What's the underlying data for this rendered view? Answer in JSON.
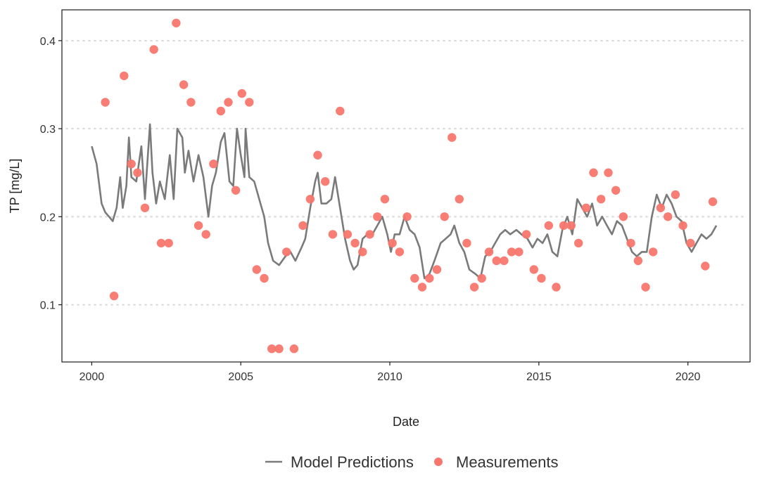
{
  "chart_data": {
    "type": "line",
    "xlabel": "Date",
    "ylabel": "TP [mg/L]",
    "x_ticks": [
      "2000",
      "2005",
      "2010",
      "2015",
      "2020"
    ],
    "y_ticks": [
      "0.1",
      "0.2",
      "0.3",
      "0.4"
    ],
    "xlim": [
      "1999-01-01",
      "2022-02-01"
    ],
    "ylim": [
      0.035,
      0.435
    ],
    "grid": "horizontal dotted",
    "legend_position": "bottom",
    "series": [
      {
        "name": "Model Predictions",
        "type": "line",
        "color": "#7a7a7a",
        "points": [
          [
            "2000-01-01",
            0.28
          ],
          [
            "2000-03-01",
            0.26
          ],
          [
            "2000-05-01",
            0.215
          ],
          [
            "2000-06-15",
            0.205
          ],
          [
            "2000-08-01",
            0.2
          ],
          [
            "2000-09-15",
            0.195
          ],
          [
            "2000-11-01",
            0.21
          ],
          [
            "2000-12-15",
            0.245
          ],
          [
            "2001-01-15",
            0.21
          ],
          [
            "2001-03-01",
            0.235
          ],
          [
            "2001-04-01",
            0.29
          ],
          [
            "2001-05-01",
            0.245
          ],
          [
            "2001-07-01",
            0.24
          ],
          [
            "2001-09-01",
            0.28
          ],
          [
            "2001-10-15",
            0.22
          ],
          [
            "2001-12-15",
            0.305
          ],
          [
            "2002-01-15",
            0.25
          ],
          [
            "2002-03-01",
            0.215
          ],
          [
            "2002-04-15",
            0.24
          ],
          [
            "2002-06-15",
            0.22
          ],
          [
            "2002-08-15",
            0.27
          ],
          [
            "2002-10-01",
            0.22
          ],
          [
            "2002-11-15",
            0.3
          ],
          [
            "2003-01-15",
            0.29
          ],
          [
            "2003-02-15",
            0.25
          ],
          [
            "2003-04-01",
            0.275
          ],
          [
            "2003-06-01",
            0.24
          ],
          [
            "2003-08-01",
            0.27
          ],
          [
            "2003-10-01",
            0.245
          ],
          [
            "2003-12-01",
            0.2
          ],
          [
            "2004-01-15",
            0.235
          ],
          [
            "2004-03-01",
            0.25
          ],
          [
            "2004-05-01",
            0.285
          ],
          [
            "2004-06-15",
            0.295
          ],
          [
            "2004-08-15",
            0.24
          ],
          [
            "2004-10-01",
            0.235
          ],
          [
            "2004-11-15",
            0.3
          ],
          [
            "2005-01-01",
            0.27
          ],
          [
            "2005-02-15",
            0.245
          ],
          [
            "2005-03-01",
            0.3
          ],
          [
            "2005-04-15",
            0.245
          ],
          [
            "2005-06-15",
            0.24
          ],
          [
            "2005-08-15",
            0.22
          ],
          [
            "2005-10-15",
            0.2
          ],
          [
            "2005-12-01",
            0.17
          ],
          [
            "2006-02-01",
            0.15
          ],
          [
            "2006-04-15",
            0.145
          ],
          [
            "2006-07-01",
            0.155
          ],
          [
            "2006-09-01",
            0.16
          ],
          [
            "2006-11-01",
            0.15
          ],
          [
            "2007-01-15",
            0.165
          ],
          [
            "2007-03-01",
            0.175
          ],
          [
            "2007-05-01",
            0.21
          ],
          [
            "2007-07-01",
            0.24
          ],
          [
            "2007-08-01",
            0.25
          ],
          [
            "2007-09-15",
            0.215
          ],
          [
            "2007-11-15",
            0.215
          ],
          [
            "2008-01-15",
            0.22
          ],
          [
            "2008-03-01",
            0.245
          ],
          [
            "2008-05-01",
            0.21
          ],
          [
            "2008-07-01",
            0.175
          ],
          [
            "2008-09-01",
            0.15
          ],
          [
            "2008-10-15",
            0.14
          ],
          [
            "2008-12-01",
            0.145
          ],
          [
            "2009-02-01",
            0.175
          ],
          [
            "2009-04-01",
            0.18
          ],
          [
            "2009-06-01",
            0.18
          ],
          [
            "2009-08-01",
            0.19
          ],
          [
            "2009-10-01",
            0.2
          ],
          [
            "2009-12-01",
            0.18
          ],
          [
            "2010-01-15",
            0.16
          ],
          [
            "2010-03-01",
            0.18
          ],
          [
            "2010-05-01",
            0.18
          ],
          [
            "2010-07-01",
            0.2
          ],
          [
            "2010-09-01",
            0.185
          ],
          [
            "2010-11-01",
            0.18
          ],
          [
            "2011-01-01",
            0.165
          ],
          [
            "2011-03-01",
            0.13
          ],
          [
            "2011-05-01",
            0.135
          ],
          [
            "2011-07-01",
            0.15
          ],
          [
            "2011-09-15",
            0.17
          ],
          [
            "2011-11-15",
            0.175
          ],
          [
            "2012-01-15",
            0.18
          ],
          [
            "2012-03-01",
            0.19
          ],
          [
            "2012-05-01",
            0.17
          ],
          [
            "2012-07-01",
            0.16
          ],
          [
            "2012-09-01",
            0.14
          ],
          [
            "2012-11-15",
            0.135
          ],
          [
            "2013-01-15",
            0.13
          ],
          [
            "2013-03-15",
            0.155
          ],
          [
            "2013-05-15",
            0.16
          ],
          [
            "2013-07-15",
            0.17
          ],
          [
            "2013-09-15",
            0.18
          ],
          [
            "2013-11-15",
            0.185
          ],
          [
            "2014-01-15",
            0.18
          ],
          [
            "2014-04-01",
            0.185
          ],
          [
            "2014-06-01",
            0.18
          ],
          [
            "2014-08-15",
            0.175
          ],
          [
            "2014-10-15",
            0.165
          ],
          [
            "2014-12-15",
            0.175
          ],
          [
            "2015-02-15",
            0.17
          ],
          [
            "2015-04-15",
            0.18
          ],
          [
            "2015-06-15",
            0.16
          ],
          [
            "2015-08-15",
            0.155
          ],
          [
            "2015-10-15",
            0.185
          ],
          [
            "2015-12-15",
            0.2
          ],
          [
            "2016-02-15",
            0.18
          ],
          [
            "2016-04-15",
            0.22
          ],
          [
            "2016-06-15",
            0.21
          ],
          [
            "2016-08-15",
            0.2
          ],
          [
            "2016-10-15",
            0.215
          ],
          [
            "2016-12-15",
            0.19
          ],
          [
            "2017-02-15",
            0.2
          ],
          [
            "2017-04-15",
            0.19
          ],
          [
            "2017-06-15",
            0.18
          ],
          [
            "2017-08-15",
            0.195
          ],
          [
            "2017-10-15",
            0.19
          ],
          [
            "2017-12-15",
            0.175
          ],
          [
            "2018-02-15",
            0.16
          ],
          [
            "2018-04-15",
            0.155
          ],
          [
            "2018-06-15",
            0.16
          ],
          [
            "2018-08-15",
            0.16
          ],
          [
            "2018-10-15",
            0.2
          ],
          [
            "2018-12-15",
            0.225
          ],
          [
            "2019-02-15",
            0.21
          ],
          [
            "2019-04-15",
            0.225
          ],
          [
            "2019-06-15",
            0.215
          ],
          [
            "2019-08-15",
            0.2
          ],
          [
            "2019-10-15",
            0.195
          ],
          [
            "2019-12-15",
            0.17
          ],
          [
            "2020-02-15",
            0.16
          ],
          [
            "2020-04-15",
            0.17
          ],
          [
            "2020-06-15",
            0.18
          ],
          [
            "2020-08-15",
            0.175
          ],
          [
            "2020-10-15",
            0.18
          ],
          [
            "2020-12-15",
            0.19
          ]
        ]
      },
      {
        "name": "Measurements",
        "type": "scatter",
        "color": "#f8766d",
        "points": [
          [
            "2000-06-15",
            0.33
          ],
          [
            "2000-10-01",
            0.11
          ],
          [
            "2001-02-01",
            0.36
          ],
          [
            "2001-05-01",
            0.26
          ],
          [
            "2001-07-15",
            0.25
          ],
          [
            "2001-10-15",
            0.21
          ],
          [
            "2002-02-01",
            0.39
          ],
          [
            "2002-05-01",
            0.17
          ],
          [
            "2002-08-01",
            0.17
          ],
          [
            "2002-11-01",
            0.42
          ],
          [
            "2003-02-01",
            0.35
          ],
          [
            "2003-05-01",
            0.33
          ],
          [
            "2003-08-01",
            0.19
          ],
          [
            "2003-11-01",
            0.18
          ],
          [
            "2004-02-01",
            0.26
          ],
          [
            "2004-05-01",
            0.32
          ],
          [
            "2004-08-01",
            0.33
          ],
          [
            "2004-11-01",
            0.23
          ],
          [
            "2005-01-15",
            0.34
          ],
          [
            "2005-04-15",
            0.33
          ],
          [
            "2005-07-15",
            0.14
          ],
          [
            "2005-10-15",
            0.13
          ],
          [
            "2006-01-15",
            0.05
          ],
          [
            "2006-04-15",
            0.05
          ],
          [
            "2006-07-15",
            0.16
          ],
          [
            "2006-10-15",
            0.05
          ],
          [
            "2007-02-01",
            0.19
          ],
          [
            "2007-05-01",
            0.22
          ],
          [
            "2007-08-01",
            0.27
          ],
          [
            "2007-11-01",
            0.24
          ],
          [
            "2008-02-01",
            0.18
          ],
          [
            "2008-05-01",
            0.32
          ],
          [
            "2008-08-01",
            0.18
          ],
          [
            "2008-11-01",
            0.17
          ],
          [
            "2009-02-01",
            0.16
          ],
          [
            "2009-05-01",
            0.18
          ],
          [
            "2009-08-01",
            0.2
          ],
          [
            "2009-11-01",
            0.22
          ],
          [
            "2010-02-01",
            0.17
          ],
          [
            "2010-05-01",
            0.16
          ],
          [
            "2010-08-01",
            0.2
          ],
          [
            "2010-11-01",
            0.13
          ],
          [
            "2011-02-01",
            0.12
          ],
          [
            "2011-05-01",
            0.13
          ],
          [
            "2011-08-01",
            0.14
          ],
          [
            "2011-11-01",
            0.2
          ],
          [
            "2012-02-01",
            0.29
          ],
          [
            "2012-05-01",
            0.22
          ],
          [
            "2012-08-01",
            0.17
          ],
          [
            "2012-11-01",
            0.12
          ],
          [
            "2013-02-01",
            0.13
          ],
          [
            "2013-05-01",
            0.16
          ],
          [
            "2013-08-01",
            0.15
          ],
          [
            "2013-11-01",
            0.15
          ],
          [
            "2014-02-01",
            0.16
          ],
          [
            "2014-05-01",
            0.16
          ],
          [
            "2014-08-01",
            0.18
          ],
          [
            "2014-11-01",
            0.14
          ],
          [
            "2015-02-01",
            0.13
          ],
          [
            "2015-05-01",
            0.19
          ],
          [
            "2015-08-01",
            0.12
          ],
          [
            "2015-11-01",
            0.19
          ],
          [
            "2016-02-01",
            0.19
          ],
          [
            "2016-05-01",
            0.17
          ],
          [
            "2016-08-01",
            0.21
          ],
          [
            "2016-11-01",
            0.25
          ],
          [
            "2017-02-01",
            0.22
          ],
          [
            "2017-05-01",
            0.25
          ],
          [
            "2017-08-01",
            0.23
          ],
          [
            "2017-11-01",
            0.2
          ],
          [
            "2018-02-01",
            0.17
          ],
          [
            "2018-05-01",
            0.15
          ],
          [
            "2018-08-01",
            0.12
          ],
          [
            "2018-11-01",
            0.16
          ],
          [
            "2019-02-01",
            0.21
          ],
          [
            "2019-05-01",
            0.2
          ],
          [
            "2019-08-01",
            0.225
          ],
          [
            "2019-11-01",
            0.19
          ],
          [
            "2020-02-01",
            0.17
          ],
          [
            "2020-08-01",
            0.144
          ],
          [
            "2020-11-01",
            0.217
          ]
        ]
      }
    ]
  }
}
